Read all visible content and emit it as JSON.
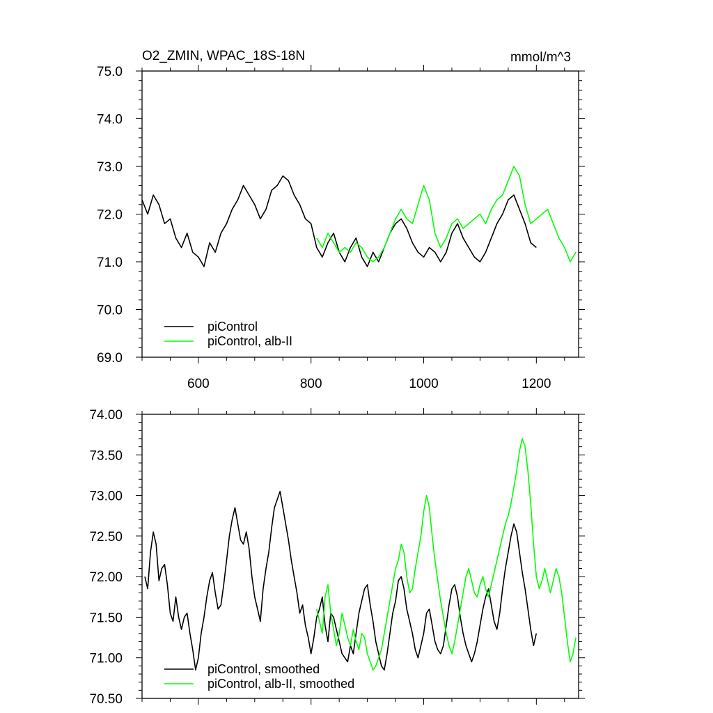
{
  "chart_data": [
    {
      "type": "line",
      "title": "O2_ZMIN, WPAC_18S-18N",
      "units": "mmol/m^3",
      "xlim": [
        500,
        1275
      ],
      "ylim": [
        69.0,
        75.0
      ],
      "xticks": [
        600,
        800,
        1000,
        1200
      ],
      "xtick_labels": [
        "600",
        "800",
        "1000",
        "1200"
      ],
      "yticks": [
        69.0,
        70.0,
        71.0,
        72.0,
        73.0,
        74.0,
        75.0
      ],
      "ytick_labels": [
        "69.0",
        "70.0",
        "71.0",
        "72.0",
        "73.0",
        "74.0",
        "75.0"
      ],
      "legend_position": "bottom-left",
      "grid": false,
      "series": [
        {
          "name": "piControl",
          "color": "#000000",
          "x": [
            500,
            510,
            520,
            530,
            540,
            550,
            560,
            570,
            580,
            590,
            600,
            610,
            620,
            630,
            640,
            650,
            660,
            670,
            680,
            690,
            700,
            710,
            720,
            730,
            740,
            750,
            760,
            770,
            780,
            790,
            800,
            810,
            820,
            830,
            840,
            850,
            860,
            870,
            880,
            890,
            900,
            910,
            920,
            930,
            940,
            950,
            960,
            970,
            980,
            990,
            1000,
            1010,
            1020,
            1030,
            1040,
            1050,
            1060,
            1070,
            1080,
            1090,
            1100,
            1110,
            1120,
            1130,
            1140,
            1150,
            1160,
            1170,
            1180,
            1190,
            1200
          ],
          "values": [
            72.3,
            72.0,
            72.4,
            72.2,
            71.8,
            71.9,
            71.5,
            71.3,
            71.6,
            71.2,
            71.1,
            70.9,
            71.4,
            71.2,
            71.6,
            71.8,
            72.1,
            72.3,
            72.6,
            72.4,
            72.2,
            71.9,
            72.1,
            72.5,
            72.6,
            72.8,
            72.7,
            72.4,
            72.2,
            71.9,
            71.8,
            71.3,
            71.1,
            71.4,
            71.6,
            71.2,
            71.0,
            71.3,
            71.5,
            71.1,
            70.9,
            71.2,
            71.0,
            71.3,
            71.6,
            71.8,
            71.9,
            71.7,
            71.4,
            71.2,
            71.1,
            71.3,
            71.2,
            71.0,
            71.2,
            71.6,
            71.8,
            71.5,
            71.3,
            71.1,
            71.0,
            71.2,
            71.5,
            71.8,
            72.0,
            72.3,
            72.4,
            72.1,
            71.8,
            71.4,
            71.3
          ]
        },
        {
          "name": "piControl, alb-II",
          "color": "#00ff00",
          "x": [
            810,
            820,
            830,
            840,
            850,
            860,
            870,
            880,
            890,
            900,
            910,
            920,
            930,
            940,
            950,
            960,
            970,
            980,
            990,
            1000,
            1010,
            1020,
            1030,
            1040,
            1050,
            1060,
            1070,
            1080,
            1090,
            1100,
            1110,
            1120,
            1130,
            1140,
            1150,
            1160,
            1170,
            1180,
            1190,
            1200,
            1210,
            1220,
            1230,
            1240,
            1250,
            1260,
            1270
          ],
          "values": [
            71.5,
            71.3,
            71.6,
            71.4,
            71.2,
            71.3,
            71.2,
            71.4,
            71.3,
            71.1,
            71.0,
            71.1,
            71.3,
            71.6,
            71.9,
            72.1,
            71.9,
            71.8,
            72.2,
            72.6,
            72.3,
            71.6,
            71.3,
            71.5,
            71.8,
            71.9,
            71.7,
            71.8,
            71.9,
            72.0,
            71.8,
            72.1,
            72.3,
            72.4,
            72.7,
            73.0,
            72.8,
            72.2,
            71.8,
            71.9,
            72.0,
            72.1,
            71.8,
            71.5,
            71.3,
            71.0,
            71.2
          ]
        }
      ]
    },
    {
      "type": "line",
      "title": "",
      "xlim": [
        500,
        1275
      ],
      "ylim": [
        70.5,
        74.0
      ],
      "xticks": [
        600,
        800,
        1000,
        1200
      ],
      "yticks": [
        70.5,
        71.0,
        71.5,
        72.0,
        72.5,
        73.0,
        73.5,
        74.0
      ],
      "ytick_labels": [
        "70.50",
        "71.00",
        "71.50",
        "72.00",
        "72.50",
        "73.00",
        "73.50",
        "74.00"
      ],
      "legend_position": "bottom-left",
      "grid": false,
      "series": [
        {
          "name": "piControl, smoothed",
          "color": "#000000",
          "x": [
            505,
            510,
            515,
            520,
            525,
            530,
            535,
            540,
            545,
            550,
            555,
            560,
            565,
            570,
            575,
            580,
            585,
            590,
            595,
            600,
            605,
            610,
            615,
            620,
            625,
            630,
            635,
            640,
            645,
            650,
            655,
            660,
            665,
            670,
            675,
            680,
            685,
            690,
            695,
            700,
            705,
            710,
            715,
            720,
            725,
            730,
            735,
            740,
            745,
            750,
            755,
            760,
            765,
            770,
            775,
            780,
            785,
            790,
            795,
            800,
            805,
            810,
            815,
            820,
            825,
            830,
            835,
            840,
            845,
            850,
            855,
            860,
            865,
            870,
            875,
            880,
            885,
            890,
            895,
            900,
            905,
            910,
            915,
            920,
            925,
            930,
            935,
            940,
            945,
            950,
            955,
            960,
            965,
            970,
            975,
            980,
            985,
            990,
            995,
            1000,
            1005,
            1010,
            1015,
            1020,
            1025,
            1030,
            1035,
            1040,
            1045,
            1050,
            1055,
            1060,
            1065,
            1070,
            1075,
            1080,
            1085,
            1090,
            1095,
            1100,
            1105,
            1110,
            1115,
            1120,
            1125,
            1130,
            1135,
            1140,
            1145,
            1150,
            1155,
            1160,
            1165,
            1170,
            1175,
            1180,
            1185,
            1190,
            1195,
            1200
          ],
          "values": [
            72.0,
            71.85,
            72.3,
            72.55,
            72.4,
            71.95,
            72.1,
            72.15,
            71.9,
            71.55,
            71.45,
            71.75,
            71.5,
            71.35,
            71.5,
            71.55,
            71.3,
            71.1,
            70.85,
            71.0,
            71.3,
            71.5,
            71.75,
            71.95,
            72.05,
            71.8,
            71.6,
            71.65,
            71.9,
            72.2,
            72.5,
            72.7,
            72.85,
            72.65,
            72.45,
            72.4,
            72.55,
            72.35,
            72.0,
            71.75,
            71.6,
            71.45,
            71.85,
            72.1,
            72.3,
            72.6,
            72.85,
            72.95,
            73.05,
            72.85,
            72.65,
            72.45,
            72.2,
            72.0,
            71.8,
            71.55,
            71.65,
            71.4,
            71.25,
            71.05,
            71.25,
            71.5,
            71.6,
            71.75,
            71.4,
            71.2,
            71.55,
            71.5,
            71.35,
            71.2,
            71.05,
            71.0,
            70.95,
            71.15,
            71.05,
            71.3,
            71.55,
            71.7,
            71.85,
            71.9,
            71.65,
            71.45,
            71.2,
            71.05,
            70.9,
            70.85,
            71.05,
            71.3,
            71.55,
            71.7,
            71.95,
            72.0,
            71.85,
            71.6,
            71.45,
            71.3,
            71.1,
            71.0,
            71.15,
            71.3,
            71.55,
            71.6,
            71.4,
            71.2,
            71.1,
            71.05,
            71.15,
            71.4,
            71.65,
            71.85,
            71.9,
            71.75,
            71.5,
            71.3,
            71.15,
            71.05,
            70.95,
            71.05,
            71.2,
            71.4,
            71.6,
            71.75,
            71.85,
            71.65,
            71.45,
            71.35,
            71.55,
            71.85,
            72.1,
            72.3,
            72.5,
            72.65,
            72.55,
            72.3,
            72.05,
            71.85,
            71.6,
            71.35,
            71.15,
            71.3
          ]
        },
        {
          "name": "piControl, alb-II, smoothed",
          "color": "#00ff00",
          "x": [
            810,
            815,
            820,
            825,
            830,
            835,
            840,
            845,
            850,
            855,
            860,
            865,
            870,
            875,
            880,
            885,
            890,
            895,
            900,
            905,
            910,
            915,
            920,
            925,
            930,
            935,
            940,
            945,
            950,
            955,
            960,
            965,
            970,
            975,
            980,
            985,
            990,
            995,
            1000,
            1005,
            1010,
            1015,
            1020,
            1025,
            1030,
            1035,
            1040,
            1045,
            1050,
            1055,
            1060,
            1065,
            1070,
            1075,
            1080,
            1085,
            1090,
            1095,
            1100,
            1105,
            1110,
            1115,
            1120,
            1125,
            1130,
            1135,
            1140,
            1145,
            1150,
            1155,
            1160,
            1165,
            1170,
            1175,
            1180,
            1185,
            1190,
            1195,
            1200,
            1205,
            1210,
            1215,
            1220,
            1225,
            1230,
            1235,
            1240,
            1245,
            1250,
            1255,
            1260,
            1265,
            1270
          ],
          "values": [
            71.6,
            71.45,
            71.3,
            71.75,
            71.9,
            71.55,
            71.35,
            71.15,
            71.3,
            71.55,
            71.4,
            71.25,
            71.15,
            71.35,
            71.2,
            71.1,
            71.3,
            71.25,
            71.05,
            70.95,
            70.85,
            70.9,
            71.0,
            71.1,
            71.3,
            71.5,
            71.7,
            71.9,
            72.1,
            72.2,
            72.4,
            72.3,
            72.0,
            71.8,
            71.85,
            72.1,
            72.3,
            72.5,
            72.8,
            73.0,
            72.85,
            72.5,
            72.2,
            71.95,
            71.7,
            71.5,
            71.3,
            71.15,
            71.05,
            71.2,
            71.4,
            71.6,
            71.8,
            72.0,
            72.1,
            71.95,
            71.8,
            71.75,
            71.9,
            72.0,
            71.85,
            71.75,
            71.9,
            72.05,
            72.2,
            72.35,
            72.5,
            72.65,
            72.75,
            72.9,
            73.1,
            73.3,
            73.55,
            73.7,
            73.6,
            73.3,
            72.9,
            72.4,
            72.0,
            71.85,
            71.95,
            72.1,
            71.95,
            71.8,
            71.95,
            72.1,
            72.0,
            71.8,
            71.5,
            71.2,
            70.95,
            71.05,
            71.25
          ]
        }
      ]
    }
  ]
}
